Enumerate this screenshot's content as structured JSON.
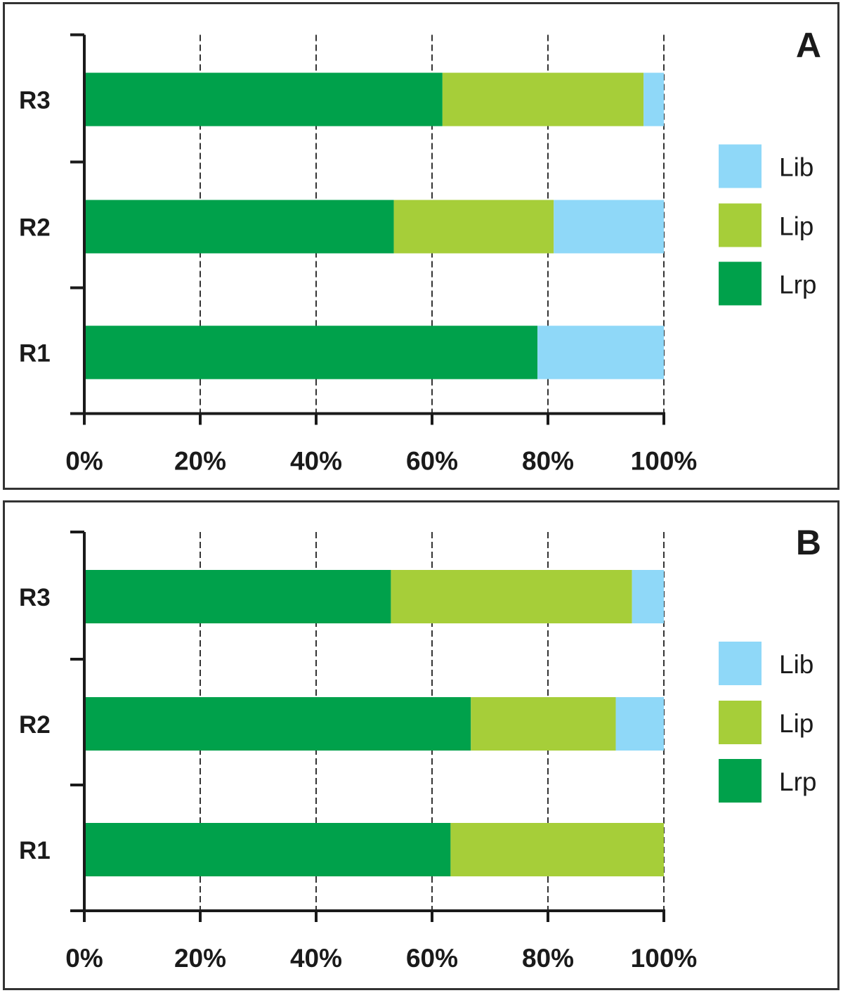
{
  "chart_data": [
    {
      "type": "bar",
      "orientation": "horizontal",
      "stacked": true,
      "percent": true,
      "panel_label": "A",
      "categories": [
        "R1",
        "R2",
        "R3"
      ],
      "series": [
        {
          "name": "Lrp",
          "color": "#00a14b",
          "values": [
            78.2,
            53.4,
            61.8
          ]
        },
        {
          "name": "Lip",
          "color": "#a6ce39",
          "values": [
            0,
            27.6,
            34.7
          ]
        },
        {
          "name": "Lib",
          "color": "#8fd8f8",
          "values": [
            21.8,
            19.0,
            3.5
          ]
        }
      ],
      "xticks": [
        "0%",
        "20%",
        "40%",
        "60%",
        "80%",
        "100%"
      ],
      "xlim": [
        0,
        100
      ],
      "grid": "vertical-dashed",
      "legend": {
        "placement": "right",
        "order": [
          "Lib",
          "Lip",
          "Lrp"
        ]
      }
    },
    {
      "type": "bar",
      "orientation": "horizontal",
      "stacked": true,
      "percent": true,
      "panel_label": "B",
      "categories": [
        "R1",
        "R2",
        "R3"
      ],
      "series": [
        {
          "name": "Lrp",
          "color": "#00a14b",
          "values": [
            63.2,
            66.7,
            52.9
          ]
        },
        {
          "name": "Lip",
          "color": "#a6ce39",
          "values": [
            36.8,
            25.0,
            41.6
          ]
        },
        {
          "name": "Lib",
          "color": "#8fd8f8",
          "values": [
            0,
            8.3,
            5.5
          ]
        }
      ],
      "xticks": [
        "0%",
        "20%",
        "40%",
        "60%",
        "80%",
        "100%"
      ],
      "xlim": [
        0,
        100
      ],
      "grid": "vertical-dashed",
      "legend": {
        "placement": "right",
        "order": [
          "Lib",
          "Lip",
          "Lrp"
        ]
      }
    }
  ]
}
